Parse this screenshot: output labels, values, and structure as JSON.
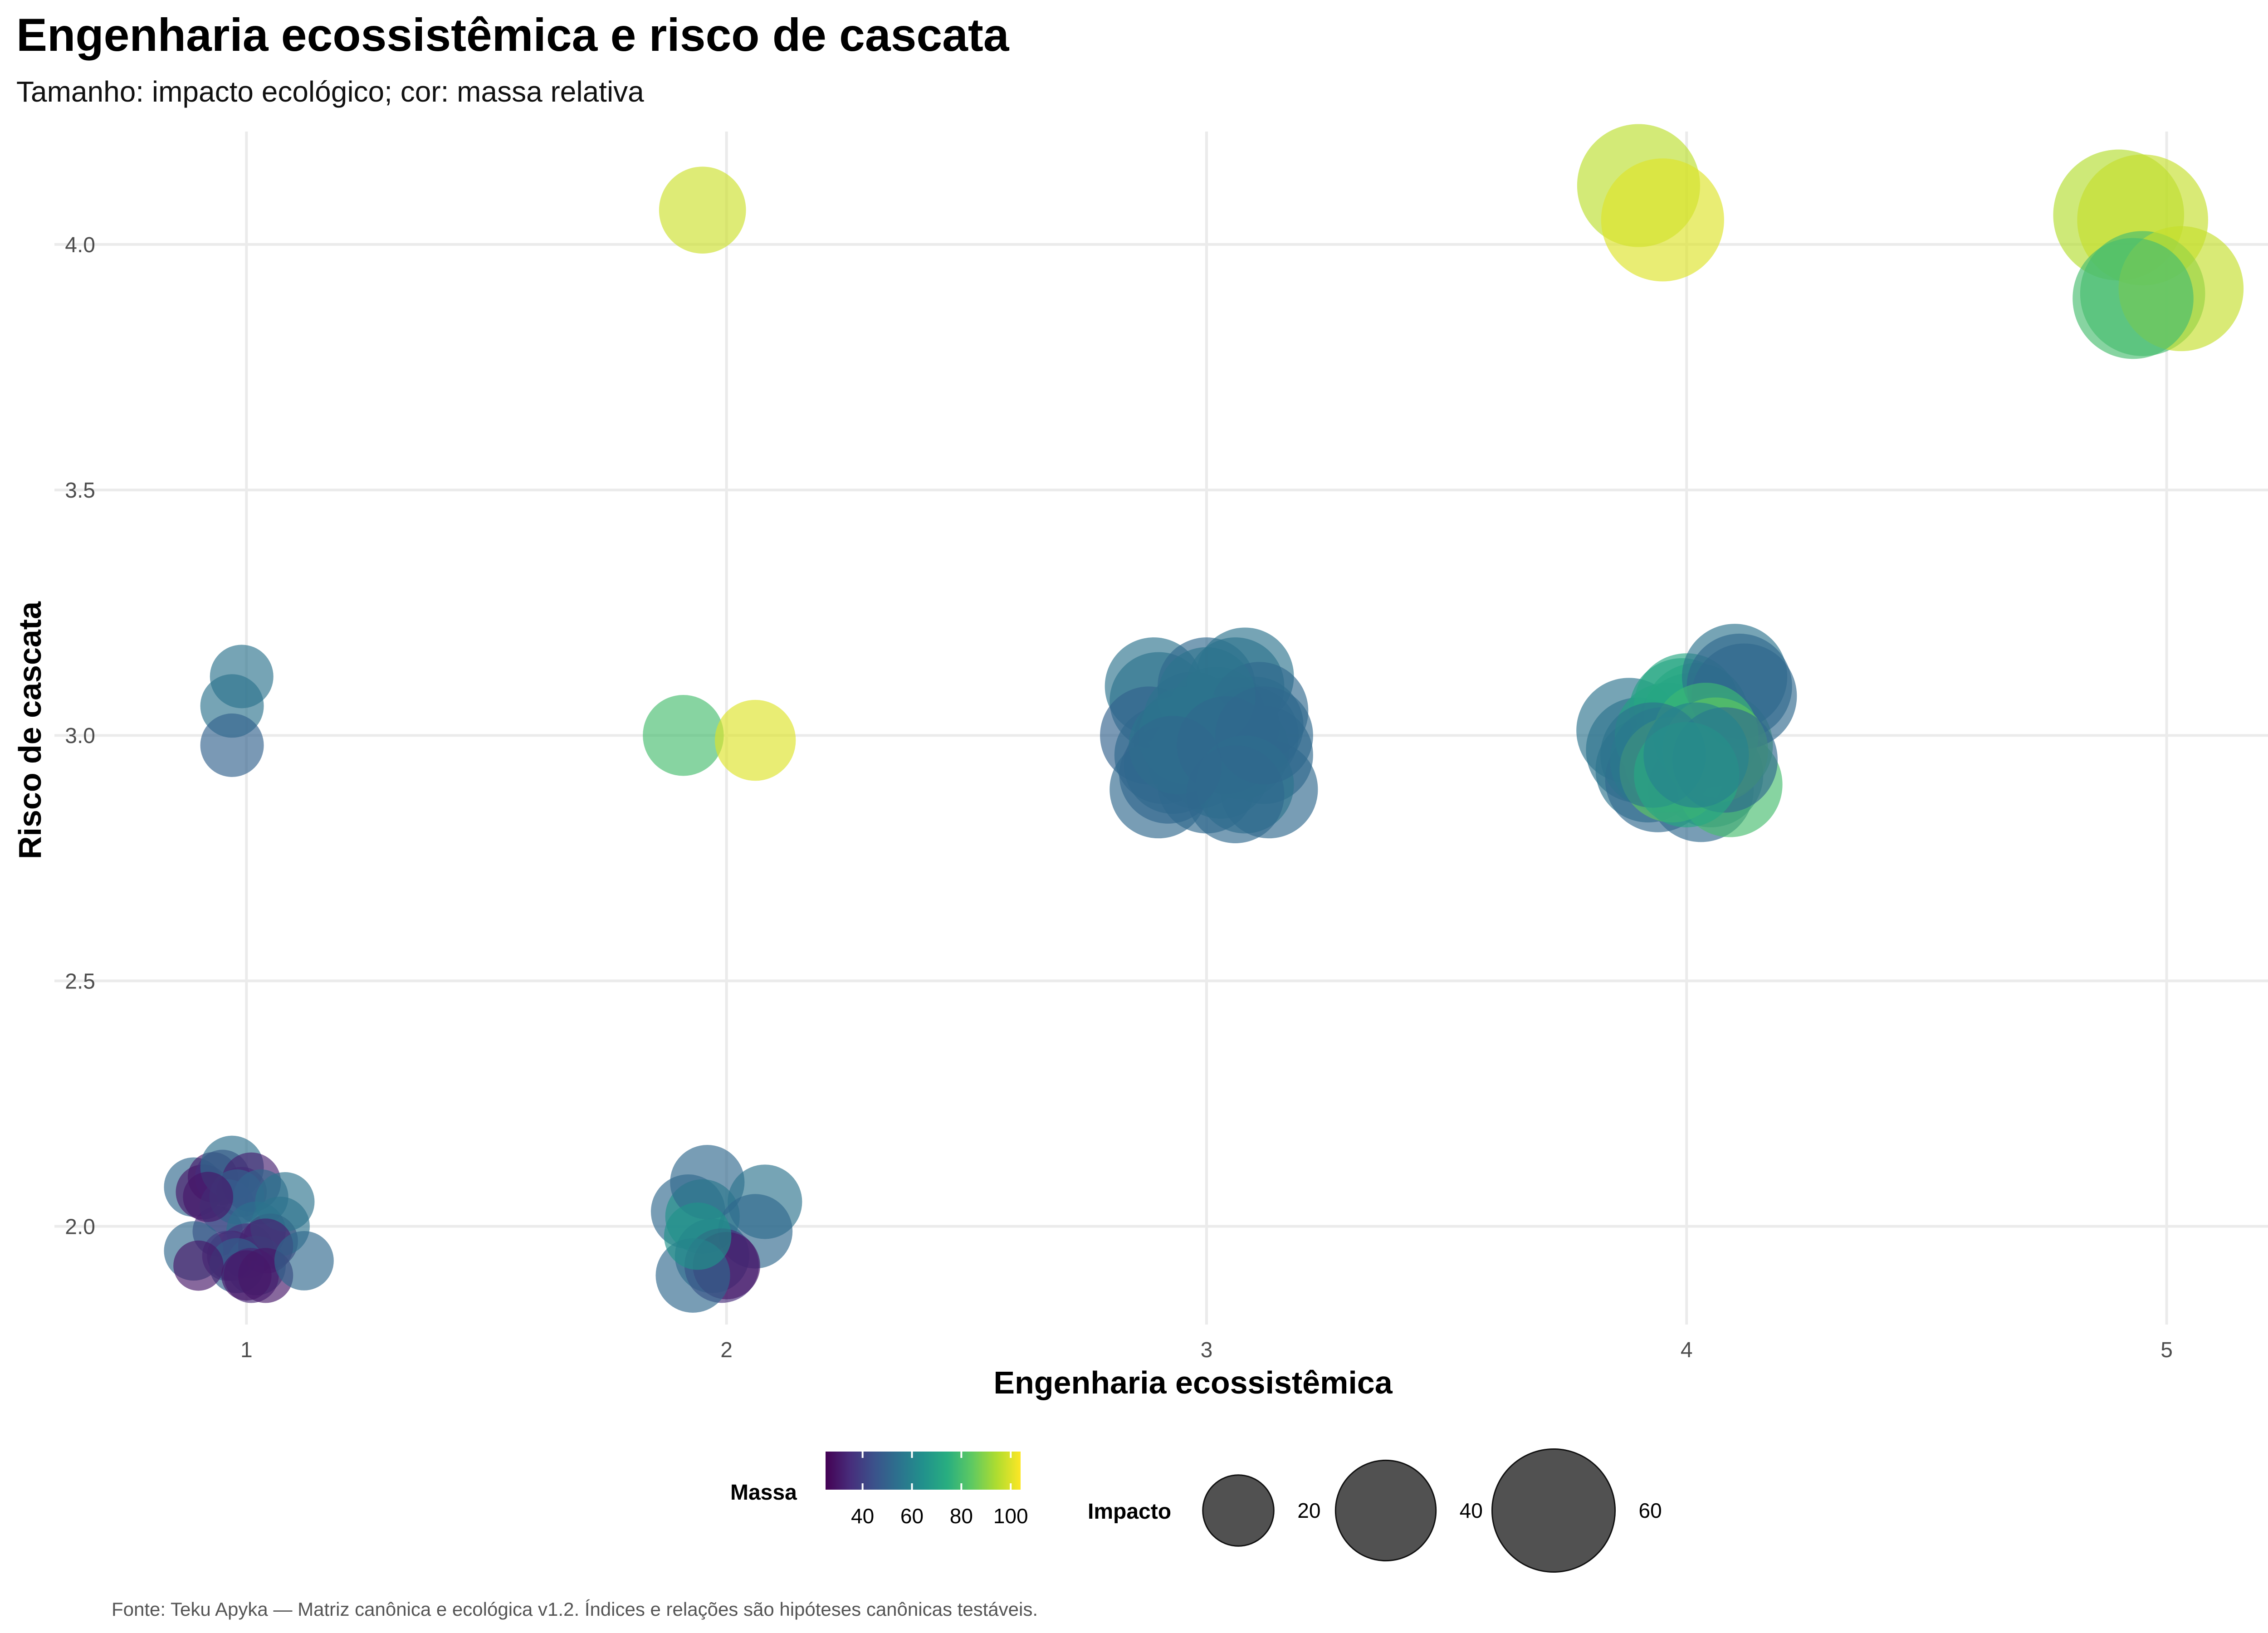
{
  "chart_data": {
    "type": "scatter",
    "title": "Engenharia ecossistêmica e risco de cascata",
    "subtitle": "Tamanho: impacto ecológico; cor: massa relativa",
    "xlabel": "Engenharia ecossistêmica",
    "ylabel": "Risco de cascata",
    "caption": "Fonte: Teku Apyka — Matriz canônica e ecológica v1.2. Índices e relações são hipóteses canônicas testáveis.",
    "xlim": [
      0.6,
      5.23
    ],
    "ylim": [
      1.8,
      4.23
    ],
    "x_ticks": [
      "1",
      "2",
      "3",
      "4",
      "5"
    ],
    "y_ticks": [
      "2.0",
      "2.5",
      "3.0",
      "3.5",
      "4.0"
    ],
    "grid": true,
    "legend": {
      "position": "bottom",
      "color_title": "Massa",
      "color_labels": [
        "40",
        "60",
        "80",
        "100"
      ],
      "color_range": [
        25,
        104
      ],
      "color_stops": [
        "#440154",
        "#472d7b",
        "#3b528b",
        "#2c728e",
        "#21918c",
        "#28ae80",
        "#5ec962",
        "#addc30",
        "#fde725"
      ],
      "size_title": "Impacto",
      "size_labels": [
        "20",
        "40",
        "60"
      ]
    },
    "point_alpha": 0.65,
    "series": [
      {
        "x": [
          0.89,
          0.91,
          0.93,
          0.95,
          0.97,
          0.99,
          1.01,
          1.03,
          0.94,
          0.96,
          0.98,
          1.02,
          0.92,
          1.05,
          1.08,
          0.97,
          1.0,
          1.02,
          1.07,
          0.89,
          0.96,
          1.04,
          0.98,
          1.01,
          1.04,
          0.9,
          1.12,
          0.97,
          0.99,
          0.97,
          1.0
        ],
        "y": [
          2.08,
          2.07,
          2.1,
          2.1,
          2.12,
          2.07,
          2.09,
          2.06,
          1.99,
          2.04,
          2.06,
          1.99,
          2.06,
          1.97,
          2.05,
          1.94,
          1.95,
          1.92,
          2.0,
          1.95,
          1.94,
          1.96,
          1.92,
          1.9,
          1.9,
          1.92,
          1.93,
          3.06,
          3.12,
          2.98,
          1.9
        ],
        "size": [
          14,
          12,
          10,
          12,
          16,
          10,
          14,
          12,
          10,
          12,
          12,
          14,
          10,
          12,
          14,
          10,
          12,
          14,
          14,
          14,
          10,
          12,
          12,
          12,
          12,
          10,
          14,
          16,
          16,
          16,
          10
        ],
        "mass": [
          52,
          30,
          30,
          35,
          54,
          40,
          32,
          52,
          35,
          45,
          50,
          54,
          30,
          30,
          55,
          28,
          36,
          52,
          55,
          52,
          38,
          32,
          50,
          33,
          30,
          30,
          52,
          55,
          55,
          50,
          30
        ]
      }
    ],
    "series_2": [
      {
        "x": [
          1.92,
          1.95,
          1.96,
          2.08,
          1.97,
          2.06,
          1.99,
          2.0,
          1.93,
          1.94,
          1.91,
          2.06,
          1.95
        ],
        "y": [
          2.03,
          2.02,
          2.09,
          2.05,
          1.94,
          1.99,
          1.92,
          1.92,
          1.9,
          1.98,
          3.0,
          2.99,
          4.07
        ],
        "size": [
          22,
          22,
          22,
          22,
          22,
          22,
          22,
          18,
          22,
          18,
          26,
          26,
          30
        ],
        "mass": [
          52,
          65,
          52,
          55,
          55,
          52,
          35,
          30,
          52,
          65,
          80,
          100,
          98
        ]
      }
    ],
    "series_3": [
      {
        "x": [
          2.89,
          2.9,
          2.88,
          2.91,
          2.95,
          2.97,
          3.0,
          3.02,
          3.05,
          3.06,
          3.08,
          3.1,
          3.12,
          3.13,
          2.92,
          2.98,
          3.0,
          3.03,
          3.07,
          3.09,
          3.11,
          2.9,
          2.94,
          2.96,
          3.0,
          3.04,
          3.08,
          3.12,
          2.93,
          3.06
        ],
        "y": [
          3.1,
          3.07,
          3.0,
          2.96,
          2.99,
          3.03,
          3.1,
          3.04,
          3.02,
          3.1,
          3.12,
          3.02,
          2.96,
          2.89,
          2.92,
          2.95,
          2.9,
          2.93,
          2.97,
          3.0,
          3.05,
          2.89,
          2.98,
          3.0,
          3.08,
          2.98,
          2.9,
          3.0,
          2.94,
          2.88
        ],
        "size": [
          38,
          38,
          38,
          38,
          38,
          38,
          38,
          38,
          38,
          38,
          38,
          38,
          38,
          38,
          38,
          38,
          38,
          38,
          38,
          38,
          38,
          38,
          38,
          38,
          38,
          38,
          38,
          38,
          38,
          38
        ],
        "mass": [
          55,
          55,
          50,
          52,
          50,
          55,
          52,
          55,
          58,
          55,
          55,
          55,
          52,
          52,
          50,
          55,
          52,
          55,
          55,
          52,
          52,
          52,
          55,
          55,
          55,
          52,
          55,
          52,
          52,
          52
        ]
      }
    ],
    "series_4": [
      {
        "x": [
          3.88,
          3.9,
          3.92,
          3.94,
          3.96,
          3.98,
          3.99,
          4.0,
          4.01,
          4.02,
          4.03,
          4.05,
          4.07,
          4.09,
          4.1,
          4.11,
          4.12,
          3.95,
          3.97,
          4.04,
          4.06,
          4.08,
          3.93,
          4.0,
          4.02
        ],
        "y": [
          3.01,
          2.97,
          2.93,
          2.91,
          3.0,
          2.95,
          3.05,
          3.06,
          3.02,
          3.04,
          2.89,
          2.92,
          2.98,
          2.9,
          3.12,
          3.1,
          3.08,
          2.95,
          2.93,
          3.0,
          2.97,
          2.95,
          2.96,
          2.92,
          2.96
        ],
        "size": [
          44,
          44,
          44,
          44,
          44,
          44,
          44,
          44,
          44,
          44,
          44,
          44,
          44,
          44,
          44,
          44,
          44,
          44,
          44,
          44,
          44,
          44,
          44,
          44,
          44
        ],
        "mass": [
          55,
          55,
          55,
          52,
          70,
          72,
          70,
          72,
          70,
          72,
          52,
          55,
          82,
          80,
          55,
          52,
          52,
          60,
          84,
          78,
          84,
          52,
          55,
          72,
          60
        ]
      },
      {
        "x": [
          3.9,
          3.95,
          4.9,
          4.95,
          4.95,
          5.03,
          4.93
        ],
        "y": [
          4.12,
          4.05,
          4.06,
          4.05,
          3.9,
          3.91,
          3.89
        ],
        "size": [
          60,
          60,
          68,
          68,
          62,
          62,
          58
        ],
        "mass": [
          96,
          100,
          95,
          97,
          80,
          97,
          80
        ]
      }
    ]
  }
}
